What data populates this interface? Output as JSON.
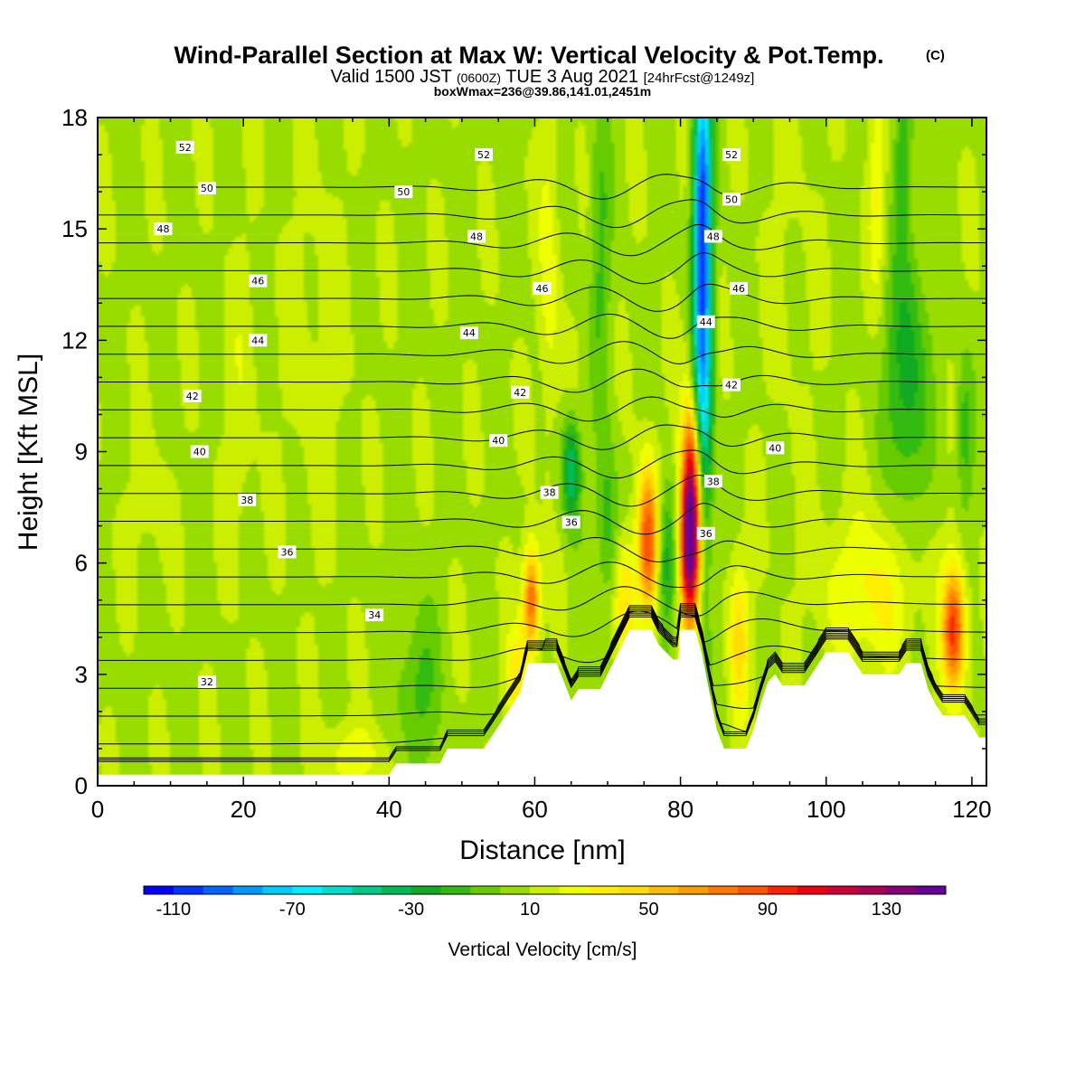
{
  "header": {
    "title": "Wind-Parallel Section at Max W: Vertical Velocity & Pot.Temp.",
    "title_mark": "(C)",
    "subtitle_a": "Valid 1500 JST",
    "subtitle_b": "(0600Z)",
    "subtitle_c": "TUE 3 Aug 2021",
    "subtitle_d": "[24hrFcst@1249z]",
    "subtitle_line3": "boxWmax=236@39.86,141.01,2451m"
  },
  "chart_data": {
    "type": "heatmap",
    "xlabel": "Distance [nm]",
    "ylabel": "Height [Kft MSL]",
    "xlim": [
      0,
      122
    ],
    "ylim": [
      0,
      18
    ],
    "x_ticks": [
      0,
      20,
      40,
      60,
      80,
      100,
      120
    ],
    "y_ticks": [
      0,
      3,
      6,
      9,
      12,
      15,
      18
    ],
    "colorbar": {
      "label": "Vertical Velocity [cm/s]",
      "min": -120,
      "max": 150,
      "step": 10,
      "tick_labels": [
        -110,
        -70,
        -30,
        10,
        50,
        90,
        130
      ],
      "colors": [
        "#0000ff",
        "#0033ff",
        "#0066ff",
        "#0099ff",
        "#00ccff",
        "#00eeff",
        "#00ddcc",
        "#00cc88",
        "#00bb55",
        "#11aa22",
        "#33bb11",
        "#66cc00",
        "#99dd00",
        "#ccee00",
        "#eeff00",
        "#ffee00",
        "#ffdd00",
        "#ffbb00",
        "#ff9900",
        "#ff7700",
        "#ff5500",
        "#ff2200",
        "#ee0011",
        "#cc0033",
        "#aa0055",
        "#880077",
        "#660099"
      ]
    },
    "contour_levels_labeled": [
      32,
      34,
      36,
      38,
      40,
      42,
      44,
      46,
      48,
      50,
      52
    ],
    "contour_labels": [
      {
        "v": 52,
        "x": 12,
        "y": 17.2
      },
      {
        "v": 52,
        "x": 53,
        "y": 17.0
      },
      {
        "v": 52,
        "x": 87,
        "y": 17.0
      },
      {
        "v": 50,
        "x": 15,
        "y": 16.1
      },
      {
        "v": 50,
        "x": 42,
        "y": 16.0
      },
      {
        "v": 50,
        "x": 87,
        "y": 15.8
      },
      {
        "v": 48,
        "x": 9,
        "y": 15.0
      },
      {
        "v": 48,
        "x": 52,
        "y": 14.8
      },
      {
        "v": 48,
        "x": 84.5,
        "y": 14.8
      },
      {
        "v": 46,
        "x": 22,
        "y": 13.6
      },
      {
        "v": 46,
        "x": 61,
        "y": 13.4
      },
      {
        "v": 46,
        "x": 88,
        "y": 13.4
      },
      {
        "v": 44,
        "x": 22,
        "y": 12.0
      },
      {
        "v": 44,
        "x": 51,
        "y": 12.2
      },
      {
        "v": 44,
        "x": 83.5,
        "y": 12.5
      },
      {
        "v": 42,
        "x": 13,
        "y": 10.5
      },
      {
        "v": 42,
        "x": 58,
        "y": 10.6
      },
      {
        "v": 42,
        "x": 87,
        "y": 10.8
      },
      {
        "v": 40,
        "x": 14,
        "y": 9.0
      },
      {
        "v": 40,
        "x": 55,
        "y": 9.3
      },
      {
        "v": 40,
        "x": 93,
        "y": 9.1
      },
      {
        "v": 38,
        "x": 20.5,
        "y": 7.7
      },
      {
        "v": 38,
        "x": 62,
        "y": 7.9
      },
      {
        "v": 38,
        "x": 84.5,
        "y": 8.2
      },
      {
        "v": 36,
        "x": 26,
        "y": 6.3
      },
      {
        "v": 36,
        "x": 65,
        "y": 7.1
      },
      {
        "v": 36,
        "x": 83.5,
        "y": 6.8
      },
      {
        "v": 34,
        "x": 38,
        "y": 4.6
      },
      {
        "v": 32,
        "x": 15,
        "y": 2.8
      }
    ],
    "terrain_kft": [
      [
        0,
        0.3
      ],
      [
        40,
        0.3
      ],
      [
        41,
        0.6
      ],
      [
        47,
        0.6
      ],
      [
        48,
        1.0
      ],
      [
        53,
        1.0
      ],
      [
        54,
        1.3
      ],
      [
        55,
        1.6
      ],
      [
        56,
        1.9
      ],
      [
        57,
        2.2
      ],
      [
        58,
        2.5
      ],
      [
        59,
        3.3
      ],
      [
        63,
        3.3
      ],
      [
        64,
        2.8
      ],
      [
        65,
        2.3
      ],
      [
        66,
        2.6
      ],
      [
        69,
        2.6
      ],
      [
        70,
        3.0
      ],
      [
        71,
        3.4
      ],
      [
        72,
        3.8
      ],
      [
        73,
        4.2
      ],
      [
        76,
        4.2
      ],
      [
        77,
        3.8
      ],
      [
        78,
        3.6
      ],
      [
        79,
        3.4
      ],
      [
        79.7,
        3.4
      ],
      [
        80,
        4.2
      ],
      [
        82,
        4.2
      ],
      [
        83,
        3.5
      ],
      [
        84,
        2.5
      ],
      [
        85,
        1.5
      ],
      [
        86,
        1.0
      ],
      [
        89,
        1.0
      ],
      [
        90,
        1.5
      ],
      [
        91,
        2.2
      ],
      [
        92,
        2.8
      ],
      [
        93,
        3.0
      ],
      [
        94,
        2.7
      ],
      [
        97,
        2.7
      ],
      [
        98,
        3.0
      ],
      [
        99,
        3.3
      ],
      [
        100,
        3.6
      ],
      [
        103,
        3.6
      ],
      [
        104,
        3.3
      ],
      [
        105,
        3.0
      ],
      [
        110,
        3.0
      ],
      [
        111,
        3.3
      ],
      [
        113,
        3.3
      ],
      [
        114,
        2.6
      ],
      [
        115,
        2.2
      ],
      [
        116,
        1.9
      ],
      [
        119,
        1.9
      ],
      [
        120,
        1.6
      ],
      [
        121,
        1.3
      ],
      [
        122,
        1.3
      ]
    ],
    "background_w": 8,
    "velocity_features": [
      {
        "x": 83,
        "y": 12.5,
        "sx": 0.9,
        "sy": 4.5,
        "w": -100
      },
      {
        "x": 83,
        "y": 16.5,
        "sx": 0.8,
        "sy": 2.0,
        "w": -40
      },
      {
        "x": 81.5,
        "y": 7.2,
        "sx": 1.0,
        "sy": 2.0,
        "w": 145
      },
      {
        "x": 81,
        "y": 6.2,
        "sx": 0.8,
        "sy": 1.2,
        "w": 40
      },
      {
        "x": 75.5,
        "y": 6.6,
        "sx": 1.0,
        "sy": 1.4,
        "w": 80
      },
      {
        "x": 78,
        "y": 6.0,
        "sx": 0.9,
        "sy": 1.4,
        "w": -35
      },
      {
        "x": 59.5,
        "y": 5.0,
        "sx": 0.8,
        "sy": 1.0,
        "w": 75
      },
      {
        "x": 65,
        "y": 8.5,
        "sx": 0.9,
        "sy": 1.0,
        "w": -50
      },
      {
        "x": 117.5,
        "y": 4.2,
        "sx": 1.1,
        "sy": 1.2,
        "w": 85
      },
      {
        "x": 106,
        "y": 5.2,
        "sx": 4.5,
        "sy": 1.5,
        "w": 25
      },
      {
        "x": 111,
        "y": 11.0,
        "sx": 2.0,
        "sy": 2.5,
        "w": -35
      },
      {
        "x": 110.5,
        "y": 17.0,
        "sx": 0.8,
        "sy": 1.5,
        "w": -25
      },
      {
        "x": 107,
        "y": 16.0,
        "sx": 0.8,
        "sy": 2.0,
        "w": 22
      },
      {
        "x": 72.5,
        "y": 5.0,
        "sx": 1.0,
        "sy": 1.2,
        "w": 35
      },
      {
        "x": 19.5,
        "y": 10.0,
        "sx": 1.6,
        "sy": 3.0,
        "w": 8
      },
      {
        "x": 7,
        "y": 7.5,
        "sx": 1.8,
        "sy": 1.2,
        "w": 8
      },
      {
        "x": 30,
        "y": 11.5,
        "sx": 3.0,
        "sy": 3.5,
        "w": 7
      },
      {
        "x": 44,
        "y": 2.6,
        "sx": 2.0,
        "sy": 1.5,
        "w": -22
      },
      {
        "x": 57.5,
        "y": 2.8,
        "sx": 1.0,
        "sy": 1.0,
        "w": 30
      },
      {
        "x": 70,
        "y": 7.0,
        "sx": 1.0,
        "sy": 1.5,
        "w": -25
      },
      {
        "x": 88,
        "y": 4.0,
        "sx": 1.0,
        "sy": 1.5,
        "w": 35
      },
      {
        "x": 69,
        "y": 14.5,
        "sx": 1.0,
        "sy": 3.0,
        "w": -20
      },
      {
        "x": 35,
        "y": 0.8,
        "sx": 3.0,
        "sy": 0.6,
        "w": 20
      },
      {
        "x": 119,
        "y": 9.5,
        "sx": 0.8,
        "sy": 1.5,
        "w": -25
      },
      {
        "x": 95,
        "y": 14.0,
        "sx": 3.0,
        "sy": 4.0,
        "w": 4
      },
      {
        "x": 62,
        "y": 13.5,
        "sx": 1.0,
        "sy": 3.0,
        "w": 18
      }
    ]
  }
}
